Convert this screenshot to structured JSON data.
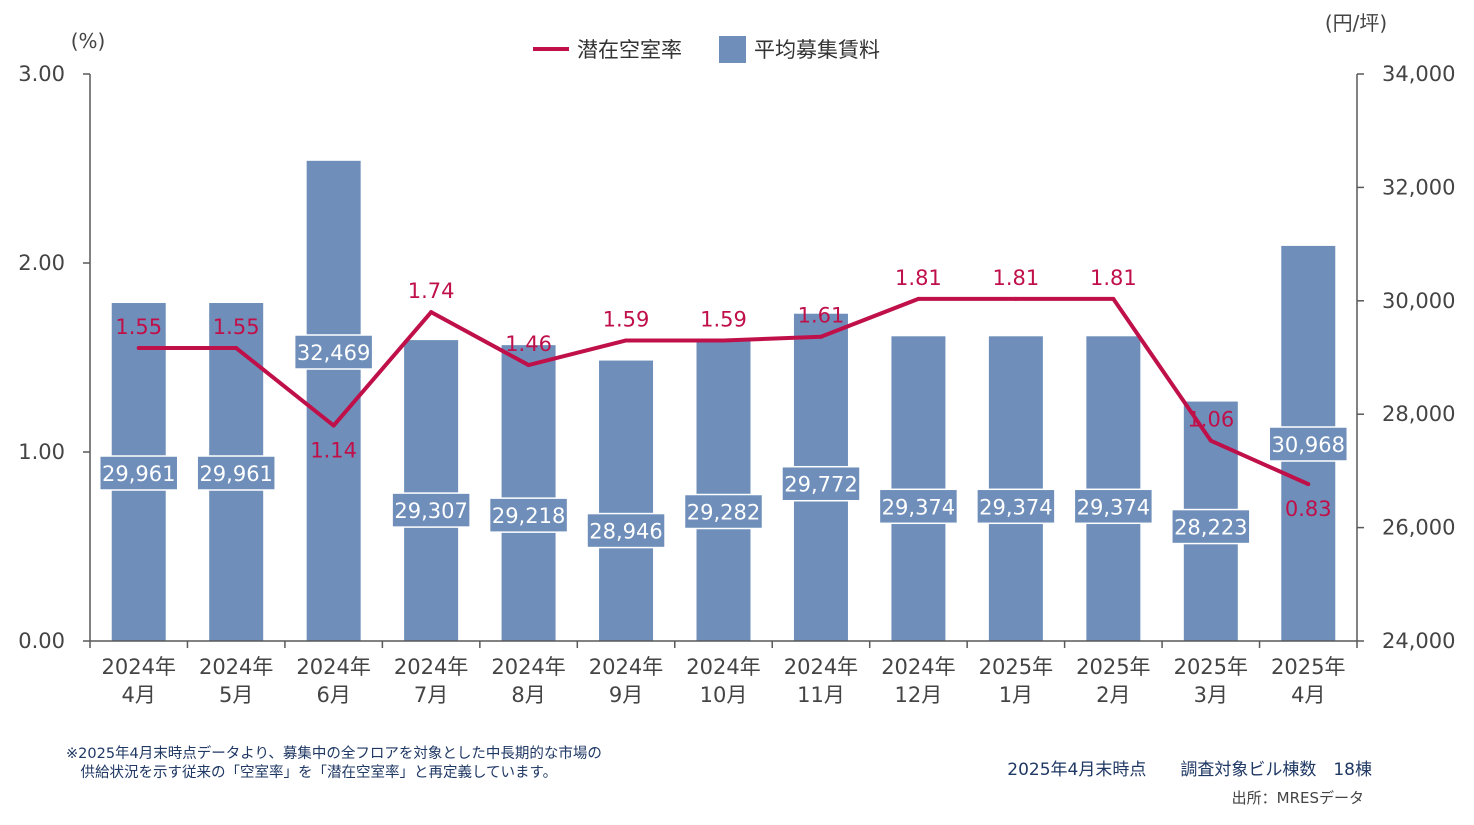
{
  "chart_data": {
    "type": "bar+line",
    "categories": [
      [
        "2024年",
        "4月"
      ],
      [
        "2024年",
        "5月"
      ],
      [
        "2024年",
        "6月"
      ],
      [
        "2024年",
        "7月"
      ],
      [
        "2024年",
        "8月"
      ],
      [
        "2024年",
        "9月"
      ],
      [
        "2024年",
        "10月"
      ],
      [
        "2024年",
        "11月"
      ],
      [
        "2024年",
        "12月"
      ],
      [
        "2025年",
        "1月"
      ],
      [
        "2025年",
        "2月"
      ],
      [
        "2025年",
        "3月"
      ],
      [
        "2025年",
        "4月"
      ]
    ],
    "series": [
      {
        "name": "潜在空室率",
        "type": "line",
        "axis": "left",
        "color": "#c0104a",
        "values": [
          1.55,
          1.55,
          1.14,
          1.74,
          1.46,
          1.59,
          1.59,
          1.61,
          1.81,
          1.81,
          1.81,
          1.06,
          0.83
        ],
        "labels": [
          "1.55",
          "1.55",
          "1.14",
          "1.74",
          "1.46",
          "1.59",
          "1.59",
          "1.61",
          "1.81",
          "1.81",
          "1.81",
          "1.06",
          "0.83"
        ]
      },
      {
        "name": "平均募集賃料",
        "type": "bar",
        "axis": "right",
        "color": "#6f8fba",
        "values": [
          29961,
          29961,
          32469,
          29307,
          29218,
          28946,
          29282,
          29772,
          29374,
          29374,
          29374,
          28223,
          30968
        ],
        "labels": [
          "29,961",
          "29,961",
          "32,469",
          "29,307",
          "29,218",
          "28,946",
          "29,282",
          "29,772",
          "29,374",
          "29,374",
          "29,374",
          "28,223",
          "30,968"
        ]
      }
    ],
    "y_left": {
      "unit": "(%)",
      "ylim": [
        0,
        3
      ],
      "ticks": [
        "0.00",
        "1.00",
        "2.00",
        "3.00"
      ]
    },
    "y_right": {
      "unit": "(円/坪)",
      "ylim": [
        24000,
        34000
      ],
      "ticks": [
        "24,000",
        "26,000",
        "28,000",
        "30,000",
        "32,000",
        "34,000"
      ]
    },
    "legend": {
      "position": "top-center",
      "items": [
        "潜在空室率",
        "平均募集賃料"
      ]
    },
    "grid": false
  },
  "footer": {
    "note_line1": "※2025年4月末時点データより、募集中の全フロアを対象とした中長期的な市場の",
    "note_line2": "　供給状況を示す従来の「空室率」を「潜在空室率」と再定義しています。",
    "as_of": "2025年4月末時点　　調査対象ビル棟数　18棟",
    "source": "出所：MRESデータ"
  }
}
